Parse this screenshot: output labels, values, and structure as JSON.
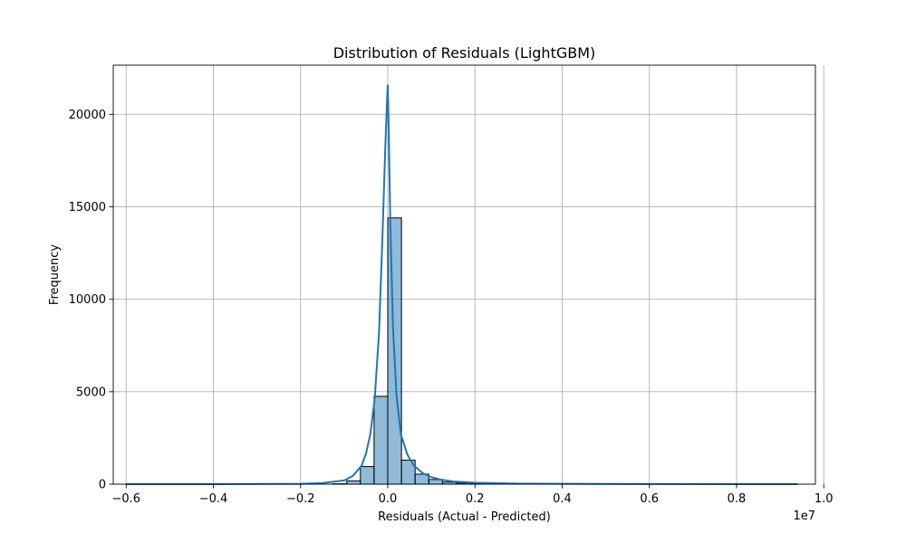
{
  "chart_data": {
    "type": "bar",
    "title": "Distribution of Residuals (LightGBM)",
    "xlabel": "Residuals (Actual - Predicted)",
    "ylabel": "Frequency",
    "x_offset_label": "1e7",
    "xlim": [
      -0.6296,
      0.9808
    ],
    "ylim": [
      0,
      22660
    ],
    "grid": true,
    "legend": "none",
    "x_ticks": [
      {
        "value": -0.6,
        "label": "−0.6"
      },
      {
        "value": -0.4,
        "label": "−0.4"
      },
      {
        "value": -0.2,
        "label": "−0.2"
      },
      {
        "value": 0.0,
        "label": "0.0"
      },
      {
        "value": 0.2,
        "label": "0.2"
      },
      {
        "value": 0.4,
        "label": "0.4"
      },
      {
        "value": 0.6,
        "label": "0.6"
      },
      {
        "value": 0.8,
        "label": "0.8"
      },
      {
        "value": 1.0,
        "label": "1.0"
      }
    ],
    "y_ticks": [
      {
        "value": 0,
        "label": "0"
      },
      {
        "value": 5000,
        "label": "5000"
      },
      {
        "value": 10000,
        "label": "10000"
      },
      {
        "value": 15000,
        "label": "15000"
      },
      {
        "value": 20000,
        "label": "20000"
      }
    ],
    "bin_edges": [
      -0.1254,
      -0.0941,
      -0.0627,
      -0.0314,
      0.0,
      0.0314,
      0.0627,
      0.0941,
      0.1254,
      0.1568,
      0.1881,
      0.2195
    ],
    "values": [
      20,
      180,
      950,
      4750,
      14400,
      1300,
      540,
      250,
      110,
      60,
      30
    ],
    "kde": {
      "x": [
        -0.6,
        -0.4,
        -0.2,
        -0.15,
        -0.1,
        -0.08,
        -0.06,
        -0.05,
        -0.04,
        -0.03,
        -0.02,
        -0.012,
        -0.006,
        -0.002,
        0.0,
        0.002,
        0.006,
        0.012,
        0.02,
        0.03,
        0.045,
        0.06,
        0.08,
        0.1,
        0.12,
        0.15,
        0.2,
        0.3,
        0.5,
        0.7,
        0.94
      ],
      "y": [
        0,
        0,
        20,
        60,
        200,
        450,
        1000,
        1650,
        2700,
        4600,
        8200,
        13500,
        18000,
        20500,
        21600,
        19500,
        14000,
        8500,
        4800,
        2700,
        1600,
        1000,
        600,
        380,
        250,
        150,
        80,
        30,
        10,
        5,
        0
      ]
    }
  }
}
